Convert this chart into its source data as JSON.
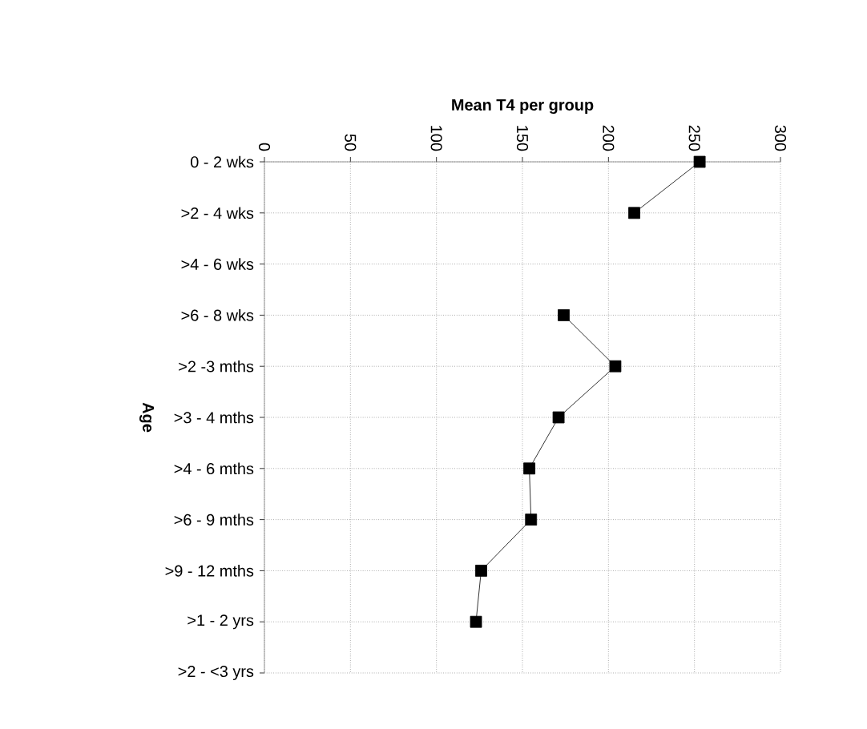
{
  "chart_data": {
    "type": "line",
    "orientation": "horizontal",
    "xlabel": "Mean T4 per group",
    "ylabel": "Age",
    "categories": [
      "0 - 2 wks",
      ">2 - 4 wks",
      ">4 - 6 wks",
      ">6 - 8 wks",
      ">2 -3 mths",
      ">3 - 4 mths",
      ">4 - 6 mths",
      ">6 - 9 mths",
      ">9 - 12 mths",
      ">1 - 2 yrs",
      ">2 - <3 yrs"
    ],
    "values": [
      253,
      215,
      null,
      174,
      204,
      171,
      154,
      155,
      126,
      123,
      null
    ],
    "color": "#000000",
    "xlim": [
      0,
      300
    ],
    "xticks": [
      0,
      50,
      100,
      150,
      200,
      250,
      300
    ],
    "grid": true,
    "marker": "square",
    "line_style": "solid"
  }
}
